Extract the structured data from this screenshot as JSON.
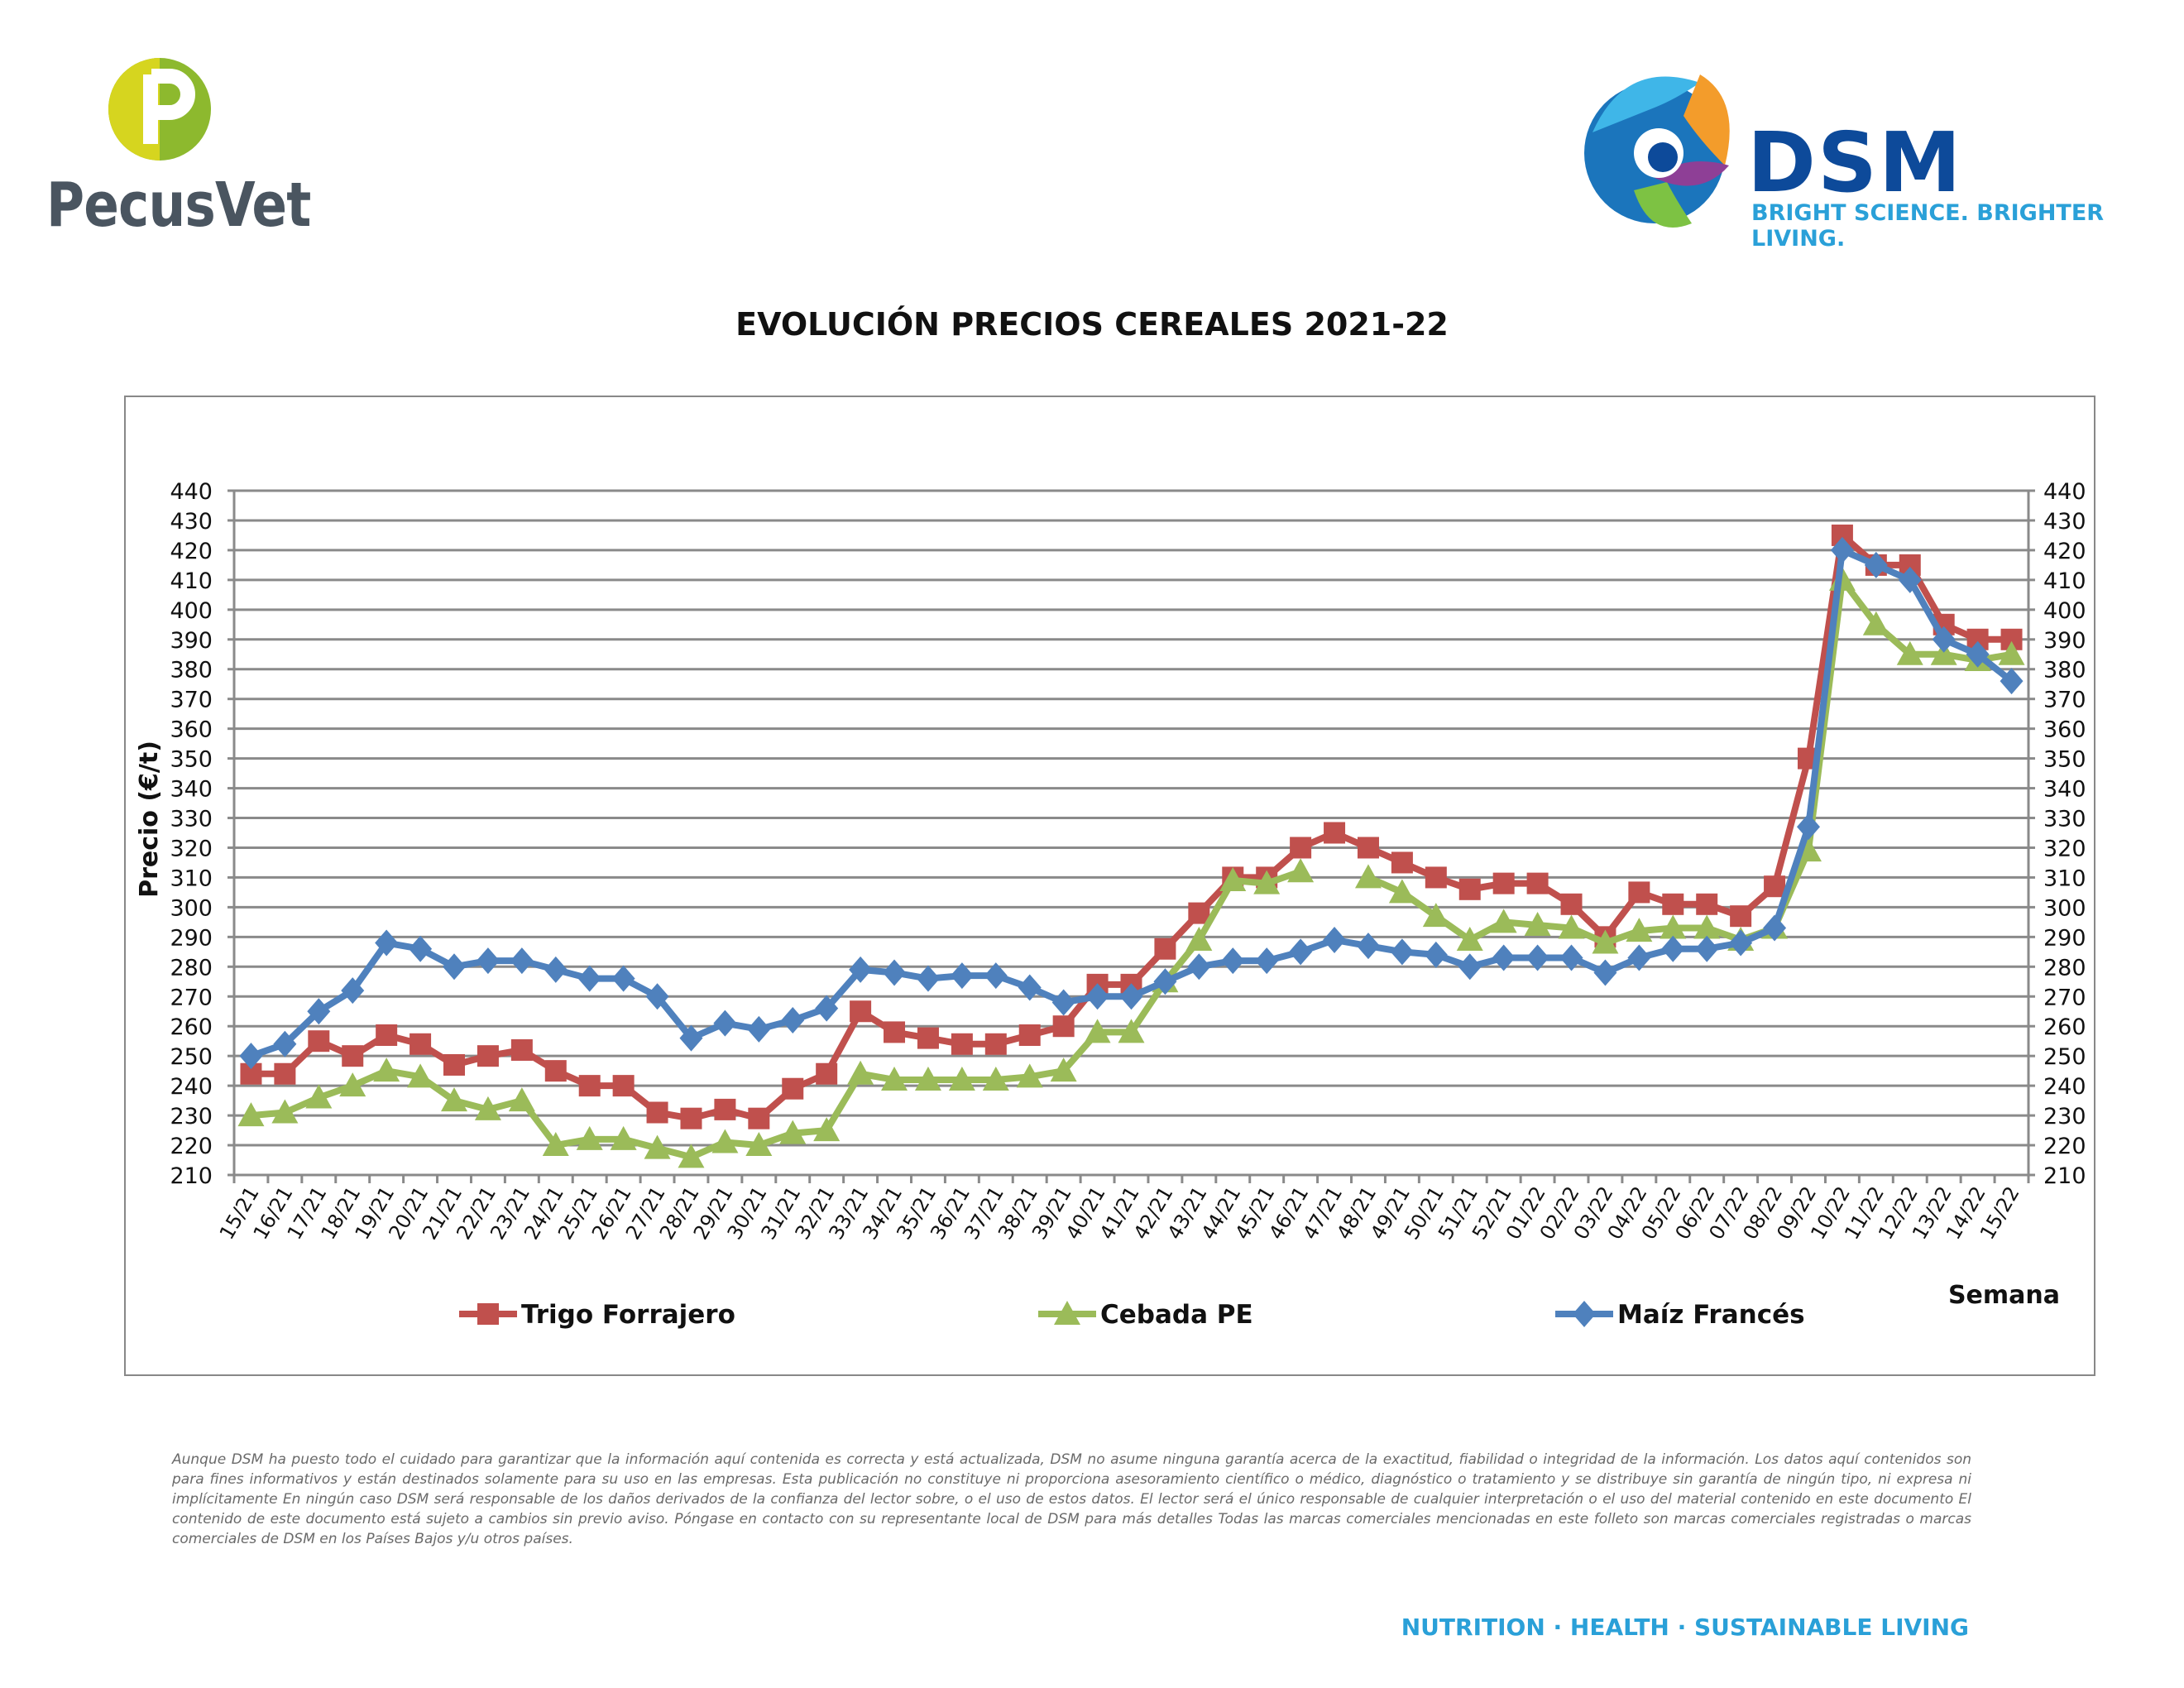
{
  "brand_left": {
    "name": "PecusVet"
  },
  "brand_right": {
    "name": "DSM",
    "tagline": "BRIGHT SCIENCE. BRIGHTER LIVING."
  },
  "chart_data": {
    "type": "line",
    "title": "EVOLUCIÓN PRECIOS CEREALES 2021-22",
    "xlabel": "Semana",
    "ylabel": "Precio (€/t)",
    "ylim": [
      210,
      440
    ],
    "ytick_step": 10,
    "grid": true,
    "legend_position": "bottom",
    "secondary_y_axis": true,
    "categories": [
      "15/21",
      "16/21",
      "17/21",
      "18/21",
      "19/21",
      "20/21",
      "21/21",
      "22/21",
      "23/21",
      "24/21",
      "25/21",
      "26/21",
      "27/21",
      "28/21",
      "29/21",
      "30/21",
      "31/21",
      "32/21",
      "33/21",
      "34/21",
      "35/21",
      "36/21",
      "37/21",
      "38/21",
      "39/21",
      "40/21",
      "41/21",
      "42/21",
      "43/21",
      "44/21",
      "45/21",
      "46/21",
      "47/21",
      "48/21",
      "49/21",
      "50/21",
      "51/21",
      "52/21",
      "01/22",
      "02/22",
      "03/22",
      "04/22",
      "05/22",
      "06/22",
      "07/22",
      "08/22",
      "09/22",
      "10/22",
      "11/22",
      "12/22",
      "13/22",
      "14/22",
      "15/22"
    ],
    "series": [
      {
        "name": "Trigo Forrajero",
        "color": "#c0504d",
        "marker": "square",
        "values": [
          244,
          244,
          255,
          250,
          257,
          254,
          247,
          250,
          252,
          245,
          240,
          240,
          231,
          229,
          232,
          229,
          239,
          244,
          265,
          258,
          256,
          254,
          254,
          257,
          260,
          274,
          274,
          286,
          298,
          310,
          310,
          320,
          325,
          320,
          315,
          310,
          306,
          308,
          308,
          301,
          290,
          305,
          301,
          301,
          297,
          307,
          350,
          425,
          415,
          415,
          395,
          390,
          390
        ]
      },
      {
        "name": "Cebada PE",
        "color": "#9bbb59",
        "marker": "triangle",
        "values": [
          230,
          231,
          236,
          240,
          245,
          243,
          235,
          232,
          235,
          220,
          222,
          222,
          219,
          216,
          221,
          220,
          224,
          225,
          244,
          242,
          242,
          242,
          242,
          243,
          245,
          258,
          258,
          275,
          289,
          309,
          308,
          312,
          null,
          310,
          305,
          297,
          289,
          295,
          294,
          293,
          288,
          292,
          293,
          293,
          289,
          293,
          319,
          410,
          395,
          385,
          385,
          383,
          385
        ]
      },
      {
        "name": "Maíz Francés",
        "color": "#4f81bd",
        "marker": "diamond",
        "values": [
          250,
          254,
          265,
          272,
          288,
          286,
          280,
          282,
          282,
          279,
          276,
          276,
          270,
          256,
          261,
          259,
          262,
          266,
          279,
          278,
          276,
          277,
          277,
          273,
          268,
          270,
          270,
          275,
          280,
          282,
          282,
          285,
          289,
          287,
          285,
          284,
          280,
          283,
          283,
          283,
          278,
          283,
          286,
          286,
          288,
          293,
          327,
          420,
          415,
          410,
          390,
          385,
          376
        ]
      }
    ]
  },
  "disclaimer": "Aunque DSM ha puesto todo el cuidado para garantizar que la información aquí contenida es correcta y está actualizada, DSM no asume ninguna garantía acerca de la exactitud, fiabilidad o integridad de la información. Los datos aquí contenidos son para fines informativos y están destinados solamente para su uso en las empresas. Esta publicación no constituye ni proporciona asesoramiento científico o médico, diagnóstico o tratamiento y se distribuye sin garantía de ningún tipo, ni expresa ni implícitamente En ningún caso DSM será responsable de los daños derivados de la confianza del lector sobre, o el uso de estos datos. El lector será el único responsable de cualquier interpretación o el uso del material contenido en este documento El contenido de este documento está sujeto a cambios sin previo aviso. Póngase en contacto con su representante local de DSM para más detalles Todas las marcas comerciales mencionadas en este folleto son marcas comerciales registradas o marcas comerciales de DSM en los Países Bajos y/u otros países.",
  "footer_tagline": "NUTRITION · HEALTH · SUSTAINABLE LIVING"
}
